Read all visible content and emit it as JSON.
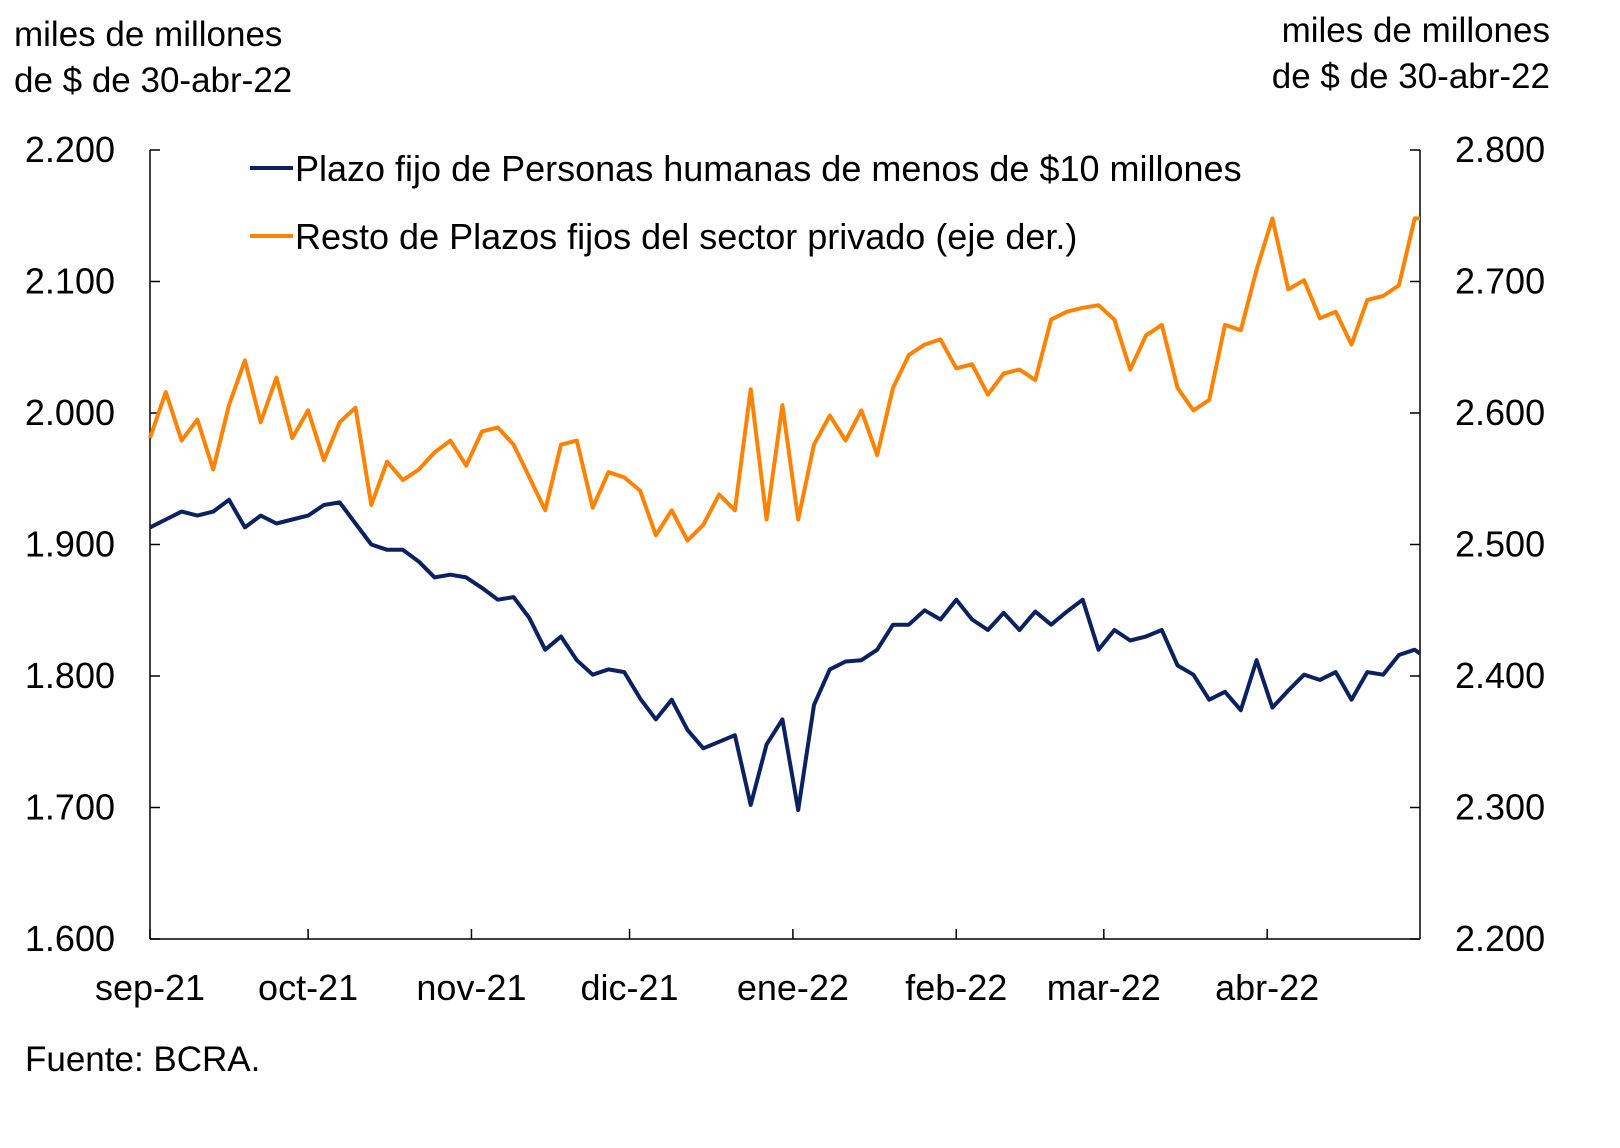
{
  "chart_data": {
    "type": "line",
    "title": "",
    "ylabel_left": [
      "miles de millones",
      "de $ de 30-abr-22"
    ],
    "ylabel_right": [
      "miles de millones",
      "de $ de 30-abr-22"
    ],
    "source": "Fuente: BCRA.",
    "ylim_left": [
      1600,
      2200
    ],
    "ylim_right": [
      2200,
      2800
    ],
    "yticks_left": [
      "1.600",
      "1.700",
      "1.800",
      "1.900",
      "2.000",
      "2.100",
      "2.200"
    ],
    "yticks_right": [
      "2.200",
      "2.300",
      "2.400",
      "2.500",
      "2.600",
      "2.700",
      "2.800"
    ],
    "xlim": [
      "2021-09-01",
      "2022-04-30"
    ],
    "xticks": [
      {
        "date": "2021-09-01",
        "label": "sep-21"
      },
      {
        "date": "2021-10-01",
        "label": "oct-21"
      },
      {
        "date": "2021-11-01",
        "label": "nov-21"
      },
      {
        "date": "2021-12-01",
        "label": "dic-21"
      },
      {
        "date": "2022-01-01",
        "label": "ene-22"
      },
      {
        "date": "2022-02-01",
        "label": "feb-22"
      },
      {
        "date": "2022-03-01",
        "label": "mar-22"
      },
      {
        "date": "2022-04-01",
        "label": "abr-22"
      }
    ],
    "grid": false,
    "legend_position": "top-left",
    "x": [
      "2021-09-01",
      "2021-09-04",
      "2021-09-07",
      "2021-09-10",
      "2021-09-13",
      "2021-09-16",
      "2021-09-19",
      "2021-09-22",
      "2021-09-25",
      "2021-09-28",
      "2021-10-01",
      "2021-10-04",
      "2021-10-07",
      "2021-10-10",
      "2021-10-13",
      "2021-10-16",
      "2021-10-19",
      "2021-10-22",
      "2021-10-25",
      "2021-10-28",
      "2021-10-31",
      "2021-11-03",
      "2021-11-06",
      "2021-11-09",
      "2021-11-12",
      "2021-11-15",
      "2021-11-18",
      "2021-11-21",
      "2021-11-24",
      "2021-11-27",
      "2021-11-30",
      "2021-12-03",
      "2021-12-06",
      "2021-12-09",
      "2021-12-12",
      "2021-12-15",
      "2021-12-18",
      "2021-12-21",
      "2021-12-24",
      "2021-12-27",
      "2021-12-30",
      "2022-01-02",
      "2022-01-05",
      "2022-01-08",
      "2022-01-11",
      "2022-01-14",
      "2022-01-17",
      "2022-01-20",
      "2022-01-23",
      "2022-01-26",
      "2022-01-29",
      "2022-02-01",
      "2022-02-04",
      "2022-02-07",
      "2022-02-10",
      "2022-02-13",
      "2022-02-16",
      "2022-02-19",
      "2022-02-22",
      "2022-02-25",
      "2022-02-28",
      "2022-03-03",
      "2022-03-06",
      "2022-03-09",
      "2022-03-12",
      "2022-03-15",
      "2022-03-18",
      "2022-03-21",
      "2022-03-24",
      "2022-03-27",
      "2022-03-30",
      "2022-04-02",
      "2022-04-05",
      "2022-04-08",
      "2022-04-11",
      "2022-04-14",
      "2022-04-17",
      "2022-04-20",
      "2022-04-23",
      "2022-04-26",
      "2022-04-29",
      "2022-04-30"
    ],
    "series": [
      {
        "name": "Plazo fijo de Personas humanas de menos de $10 millones",
        "axis": "left",
        "color": "#0b2160",
        "values": [
          1913,
          1919,
          1925,
          1922,
          1925,
          1934,
          1913,
          1922,
          1916,
          1919,
          1922,
          1930,
          1932,
          1916,
          1900,
          1896,
          1896,
          1887,
          1875,
          1877,
          1875,
          1867,
          1858,
          1860,
          1844,
          1820,
          1830,
          1812,
          1801,
          1805,
          1803,
          1783,
          1767,
          1782,
          1759,
          1745,
          1750,
          1755,
          1702,
          1748,
          1767,
          1698,
          1778,
          1805,
          1811,
          1812,
          1820,
          1839,
          1839,
          1850,
          1843,
          1858,
          1843,
          1835,
          1848,
          1835,
          1849,
          1839,
          1849,
          1858,
          1820,
          1835,
          1827,
          1830,
          1835,
          1808,
          1801,
          1782,
          1788,
          1774,
          1812,
          1776,
          1789,
          1801,
          1797,
          1803,
          1782,
          1803,
          1801,
          1816,
          1820,
          1817
        ]
      },
      {
        "name": "Resto de Plazos fijos del sector privado (eje der.)",
        "axis": "right",
        "color": "#ff8300",
        "values": [
          2581,
          2616,
          2579,
          2595,
          2557,
          2606,
          2640,
          2593,
          2627,
          2581,
          2602,
          2564,
          2593,
          2604,
          2530,
          2563,
          2549,
          2557,
          2570,
          2579,
          2560,
          2586,
          2589,
          2576,
          2551,
          2526,
          2576,
          2579,
          2528,
          2555,
          2551,
          2541,
          2507,
          2526,
          2503,
          2515,
          2538,
          2526,
          2618,
          2519,
          2606,
          2519,
          2576,
          2598,
          2579,
          2602,
          2568,
          2619,
          2644,
          2652,
          2656,
          2634,
          2637,
          2614,
          2630,
          2633,
          2625,
          2671,
          2677,
          2680,
          2682,
          2671,
          2633,
          2659,
          2667,
          2619,
          2602,
          2610,
          2667,
          2663,
          2709,
          2748,
          2694,
          2701,
          2672,
          2677,
          2652,
          2686,
          2689,
          2697,
          2748,
          2748
        ]
      }
    ]
  }
}
